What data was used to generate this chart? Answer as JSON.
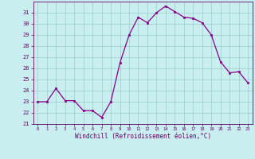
{
  "x": [
    0,
    1,
    2,
    3,
    4,
    5,
    6,
    7,
    8,
    9,
    10,
    11,
    12,
    13,
    14,
    15,
    16,
    17,
    18,
    19,
    20,
    21,
    22,
    23
  ],
  "y": [
    23,
    23,
    24.2,
    23.1,
    23.1,
    22.2,
    22.2,
    21.6,
    23,
    26.5,
    29,
    30.6,
    30.1,
    31,
    31.6,
    31.1,
    30.6,
    30.5,
    30.1,
    29,
    26.6,
    25.6,
    25.7,
    24.7
  ],
  "line_color": "#880088",
  "marker_color": "#880088",
  "bg_color": "#c8eef0",
  "grid_color": "#99cccc",
  "xlabel": "Windchill (Refroidissement éolien,°C)",
  "ylim": [
    21,
    32
  ],
  "xlim_min": -0.5,
  "xlim_max": 23.5,
  "yticks": [
    21,
    22,
    23,
    24,
    25,
    26,
    27,
    28,
    29,
    30,
    31
  ],
  "xticks": [
    0,
    1,
    2,
    3,
    4,
    5,
    6,
    7,
    8,
    9,
    10,
    11,
    12,
    13,
    14,
    15,
    16,
    17,
    18,
    19,
    20,
    21,
    22,
    23
  ],
  "tick_color": "#660066",
  "label_color": "#660066",
  "spine_color": "#660066"
}
